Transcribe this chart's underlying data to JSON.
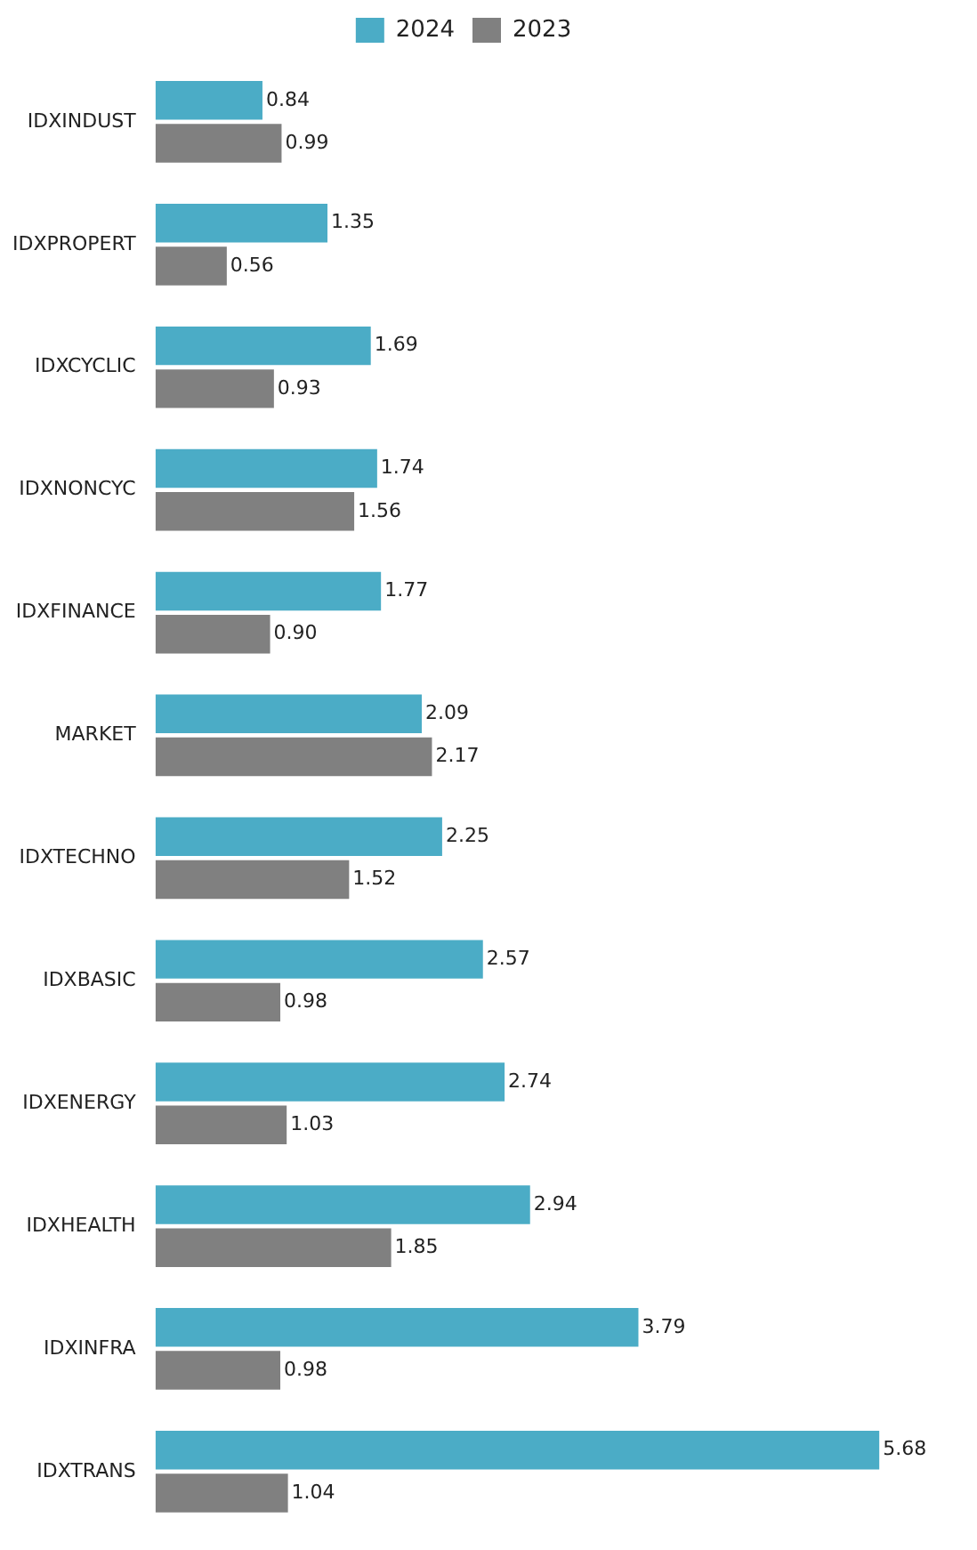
{
  "chart_data": {
    "type": "bar",
    "orientation": "horizontal",
    "categories": [
      "IDXINDUST",
      "IDXPROPERT",
      "IDXCYCLIC",
      "IDXNONCYC",
      "IDXFINANCE",
      "MARKET",
      "IDXTECHNO",
      "IDXBASIC",
      "IDXENERGY",
      "IDXHEALTH",
      "IDXINFRA",
      "IDXTRANS"
    ],
    "series": [
      {
        "name": "2024",
        "color": "#4bacc6",
        "values": [
          0.84,
          1.35,
          1.69,
          1.74,
          1.77,
          2.09,
          2.25,
          2.57,
          2.74,
          2.94,
          3.79,
          5.68
        ],
        "value_labels": [
          "0.84",
          "1.35",
          "1.69",
          "1.74",
          "1.77",
          "2.09",
          "2.25",
          "2.57",
          "2.74",
          "2.94",
          "3.79",
          "5.68"
        ]
      },
      {
        "name": "2023",
        "color": "#808080",
        "values": [
          0.99,
          0.56,
          0.93,
          1.56,
          0.9,
          2.17,
          1.52,
          0.98,
          1.03,
          1.85,
          0.98,
          1.04
        ],
        "value_labels": [
          "0.99",
          "0.56",
          "0.93",
          "1.56",
          "0.90",
          "2.17",
          "1.52",
          "0.98",
          "1.03",
          "1.85",
          "0.98",
          "1.04"
        ]
      }
    ],
    "legend": "top",
    "tick_labels": "y"
  }
}
